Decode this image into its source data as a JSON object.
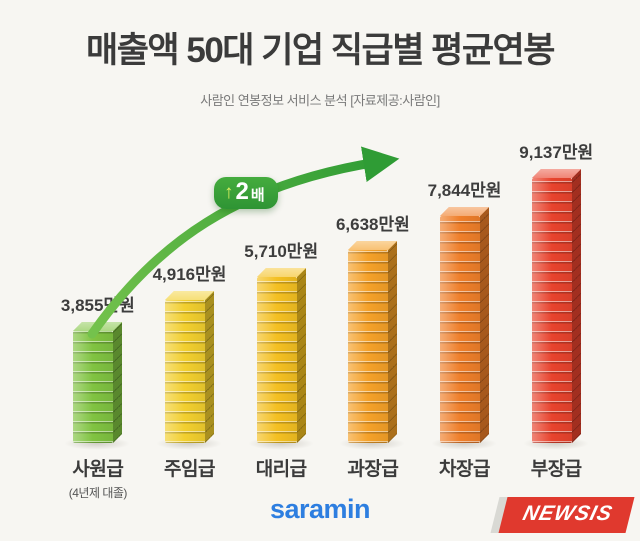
{
  "header": {
    "title": "매출액 50대 기업 직급별 평균연봉",
    "subtitle": "사람인 연봉정보 서비스 분석 [자료제공:사람인]"
  },
  "annotation": {
    "arrow_glyph": "↑",
    "multiplier": "2",
    "multiplier_unit": "배"
  },
  "chart_data": {
    "type": "bar",
    "title": "매출액 50대 기업 직급별 평균연봉",
    "categories": [
      "사원급",
      "주임급",
      "대리급",
      "과장급",
      "차장급",
      "부장급"
    ],
    "category_notes": [
      "(4년제 대졸)",
      "",
      "",
      "",
      "",
      ""
    ],
    "values": [
      3855,
      4916,
      5710,
      6638,
      7844,
      9137
    ],
    "value_labels": [
      "3,855만원",
      "4,916만원",
      "5,710만원",
      "6,638만원",
      "7,844만원",
      "9,137만원"
    ],
    "unit": "만원",
    "ylim": [
      0,
      9137
    ],
    "colors": [
      "#80c341",
      "#f2cf2e",
      "#f4c021",
      "#f5a128",
      "#ef7f2a",
      "#e8432d"
    ],
    "grid": false,
    "legend": "none",
    "annotation": "사원급 대비 부장급 약 2배 (↑2배)"
  },
  "footer": {
    "brand": "saramin",
    "watermark": "NEWSIS"
  },
  "colors": {
    "background": "#f7f6f2",
    "title_text": "#3b3b3b",
    "subtitle_text": "#7a7a7a",
    "arrow_green": "#339b36",
    "badge_green": "#2e9434",
    "brand_blue": "#2d7ee0",
    "watermark_red": "#e0392e"
  }
}
